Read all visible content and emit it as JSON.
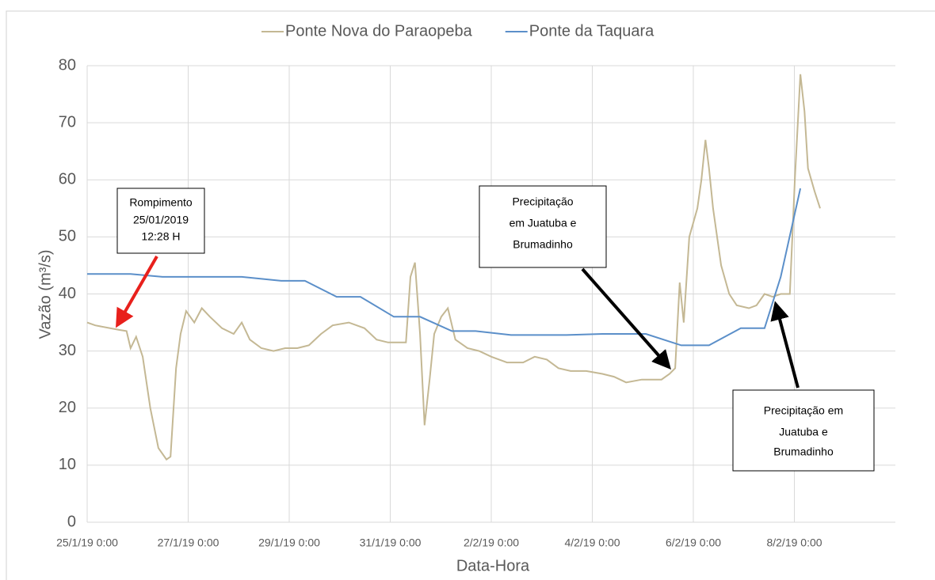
{
  "chart_data": {
    "type": "line",
    "xlabel": "Data-Hora",
    "ylabel": "Vazão (m³/s)",
    "xlim": [
      0,
      16
    ],
    "ylim": [
      0,
      80
    ],
    "xticks": [
      {
        "value": 0,
        "label": "25/1/19 0:00"
      },
      {
        "value": 2,
        "label": "27/1/19 0:00"
      },
      {
        "value": 4,
        "label": "29/1/19 0:00"
      },
      {
        "value": 6,
        "label": "31/1/19 0:00"
      },
      {
        "value": 8,
        "label": "2/2/19 0:00"
      },
      {
        "value": 10,
        "label": "4/2/19 0:00"
      },
      {
        "value": 12,
        "label": "6/2/19 0:00"
      },
      {
        "value": 14,
        "label": "8/2/19 0:00"
      }
    ],
    "yticks": [
      0,
      10,
      20,
      30,
      40,
      50,
      60,
      70,
      80
    ],
    "grid": true,
    "legend": "top",
    "series": [
      {
        "name": "Ponte Nova do Paraopeba",
        "color": "#c4b894",
        "x": [
          0,
          0.16,
          0.63,
          0.78,
          0.86,
          0.97,
          1.1,
          1.25,
          1.41,
          1.57,
          1.65,
          1.76,
          1.85,
          1.96,
          2.12,
          2.27,
          2.43,
          2.67,
          2.9,
          3.06,
          3.22,
          3.45,
          3.69,
          3.92,
          4.16,
          4.39,
          4.63,
          4.86,
          5.18,
          5.49,
          5.73,
          5.96,
          6.31,
          6.4,
          6.49,
          6.59,
          6.68,
          6.78,
          6.87,
          7.01,
          7.14,
          7.29,
          7.53,
          7.76,
          8.0,
          8.31,
          8.63,
          8.86,
          9.1,
          9.33,
          9.57,
          9.88,
          10.2,
          10.43,
          10.67,
          10.98,
          11.37,
          11.53,
          11.64,
          11.73,
          11.81,
          11.92,
          12.08,
          12.16,
          12.24,
          12.31,
          12.39,
          12.55,
          12.71,
          12.86,
          13.1,
          13.25,
          13.41,
          13.57,
          13.73,
          13.91,
          14.01,
          14.12,
          14.2,
          14.27,
          14.4,
          14.51
        ],
        "values": [
          35,
          34.5,
          33.7,
          33.5,
          30.5,
          32.5,
          29,
          20,
          13,
          11,
          11.5,
          27,
          33,
          37,
          35,
          37.5,
          36,
          34,
          33,
          35,
          32,
          30.5,
          30,
          30.5,
          30.5,
          31,
          33,
          34.5,
          35,
          34,
          32,
          31.5,
          31.5,
          43,
          45.5,
          33,
          17,
          25,
          33,
          36,
          37.5,
          32,
          30.5,
          30,
          29,
          28,
          28,
          29,
          28.5,
          27,
          26.5,
          26.5,
          26,
          25.5,
          24.5,
          25,
          25,
          26,
          27,
          42,
          35,
          50,
          55,
          60,
          67,
          62,
          55,
          45,
          40,
          38,
          37.5,
          38,
          40,
          39.5,
          40,
          40,
          60,
          78.5,
          72,
          62,
          58,
          55
        ]
      },
      {
        "name": "Ponte da Taquara",
        "color": "#5b8fc9",
        "x": [
          0,
          0.86,
          1.49,
          3.06,
          3.84,
          4.31,
          4.94,
          5.41,
          6.07,
          6.59,
          7.22,
          7.69,
          8.39,
          9.49,
          10.2,
          11.06,
          11.76,
          12.31,
          12.94,
          13.41,
          13.73,
          14.12
        ],
        "values": [
          43.5,
          43.5,
          43,
          43,
          42.3,
          42.3,
          39.5,
          39.5,
          36,
          36,
          33.5,
          33.5,
          32.8,
          32.8,
          33,
          33,
          31,
          31,
          34,
          34,
          43,
          58.5
        ]
      }
    ],
    "annotations": [
      {
        "lines": [
          "Rompimento",
          "25/01/2019",
          "12:28 H"
        ]
      },
      {
        "lines": [
          "Precipitação",
          "em Juatuba e",
          "Brumadinho"
        ]
      },
      {
        "lines": [
          "Precipitação em",
          "Juatuba e",
          "Brumadinho"
        ]
      }
    ]
  }
}
